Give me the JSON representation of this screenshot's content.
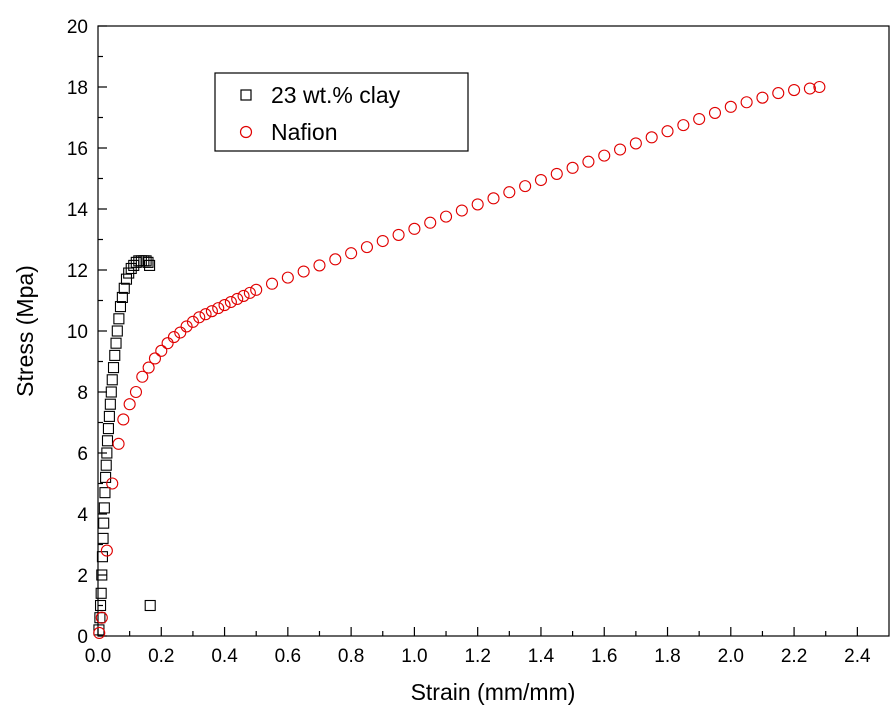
{
  "chart_data": {
    "type": "scatter",
    "xlabel": "Strain (mm/mm)",
    "ylabel": "Stress (Mpa)",
    "xlim": [
      0.0,
      2.5
    ],
    "ylim": [
      0,
      20
    ],
    "x_ticks": [
      "0.0",
      "0.2",
      "0.4",
      "0.6",
      "0.8",
      "1.0",
      "1.2",
      "1.4",
      "1.6",
      "1.8",
      "2.0",
      "2.2",
      "2.4"
    ],
    "y_ticks": [
      "0",
      "2",
      "4",
      "6",
      "8",
      "10",
      "12",
      "14",
      "16",
      "18",
      "20"
    ],
    "grid": false,
    "legend_position": "top-left",
    "series": [
      {
        "name": "23 wt.% clay",
        "marker": "open-square",
        "color": "#000000",
        "points": [
          [
            0.003,
            0.2
          ],
          [
            0.006,
            0.6
          ],
          [
            0.008,
            1.0
          ],
          [
            0.01,
            1.4
          ],
          [
            0.012,
            2.0
          ],
          [
            0.014,
            2.6
          ],
          [
            0.016,
            3.2
          ],
          [
            0.018,
            3.7
          ],
          [
            0.02,
            4.2
          ],
          [
            0.022,
            4.7
          ],
          [
            0.024,
            5.2
          ],
          [
            0.026,
            5.6
          ],
          [
            0.028,
            6.0
          ],
          [
            0.03,
            6.4
          ],
          [
            0.033,
            6.8
          ],
          [
            0.036,
            7.2
          ],
          [
            0.039,
            7.6
          ],
          [
            0.042,
            8.0
          ],
          [
            0.045,
            8.4
          ],
          [
            0.049,
            8.8
          ],
          [
            0.053,
            9.2
          ],
          [
            0.057,
            9.6
          ],
          [
            0.061,
            10.0
          ],
          [
            0.066,
            10.4
          ],
          [
            0.071,
            10.8
          ],
          [
            0.077,
            11.1
          ],
          [
            0.083,
            11.4
          ],
          [
            0.09,
            11.7
          ],
          [
            0.097,
            11.9
          ],
          [
            0.105,
            12.05
          ],
          [
            0.113,
            12.15
          ],
          [
            0.121,
            12.25
          ],
          [
            0.129,
            12.3
          ],
          [
            0.137,
            12.3
          ],
          [
            0.145,
            12.3
          ],
          [
            0.152,
            12.3
          ],
          [
            0.158,
            12.25
          ],
          [
            0.163,
            12.15
          ],
          [
            0.165,
            1.0
          ]
        ]
      },
      {
        "name": "Nafion",
        "marker": "open-circle",
        "color": "#e00000",
        "points": [
          [
            0.004,
            0.1
          ],
          [
            0.012,
            0.6
          ],
          [
            0.028,
            2.8
          ],
          [
            0.045,
            5.0
          ],
          [
            0.065,
            6.3
          ],
          [
            0.08,
            7.1
          ],
          [
            0.1,
            7.6
          ],
          [
            0.12,
            8.0
          ],
          [
            0.14,
            8.5
          ],
          [
            0.16,
            8.8
          ],
          [
            0.18,
            9.1
          ],
          [
            0.2,
            9.35
          ],
          [
            0.22,
            9.6
          ],
          [
            0.24,
            9.8
          ],
          [
            0.26,
            9.95
          ],
          [
            0.28,
            10.15
          ],
          [
            0.3,
            10.3
          ],
          [
            0.32,
            10.45
          ],
          [
            0.34,
            10.55
          ],
          [
            0.36,
            10.65
          ],
          [
            0.38,
            10.75
          ],
          [
            0.4,
            10.85
          ],
          [
            0.42,
            10.95
          ],
          [
            0.44,
            11.05
          ],
          [
            0.46,
            11.15
          ],
          [
            0.48,
            11.25
          ],
          [
            0.5,
            11.35
          ],
          [
            0.55,
            11.55
          ],
          [
            0.6,
            11.75
          ],
          [
            0.65,
            11.95
          ],
          [
            0.7,
            12.15
          ],
          [
            0.75,
            12.35
          ],
          [
            0.8,
            12.55
          ],
          [
            0.85,
            12.75
          ],
          [
            0.9,
            12.95
          ],
          [
            0.95,
            13.15
          ],
          [
            1.0,
            13.35
          ],
          [
            1.05,
            13.55
          ],
          [
            1.1,
            13.75
          ],
          [
            1.15,
            13.95
          ],
          [
            1.2,
            14.15
          ],
          [
            1.25,
            14.35
          ],
          [
            1.3,
            14.55
          ],
          [
            1.35,
            14.75
          ],
          [
            1.4,
            14.95
          ],
          [
            1.45,
            15.15
          ],
          [
            1.5,
            15.35
          ],
          [
            1.55,
            15.55
          ],
          [
            1.6,
            15.75
          ],
          [
            1.65,
            15.95
          ],
          [
            1.7,
            16.15
          ],
          [
            1.75,
            16.35
          ],
          [
            1.8,
            16.55
          ],
          [
            1.85,
            16.75
          ],
          [
            1.9,
            16.95
          ],
          [
            1.95,
            17.15
          ],
          [
            2.0,
            17.35
          ],
          [
            2.05,
            17.5
          ],
          [
            2.1,
            17.65
          ],
          [
            2.15,
            17.8
          ],
          [
            2.2,
            17.9
          ],
          [
            2.25,
            17.95
          ],
          [
            2.28,
            18.0
          ]
        ]
      }
    ]
  }
}
